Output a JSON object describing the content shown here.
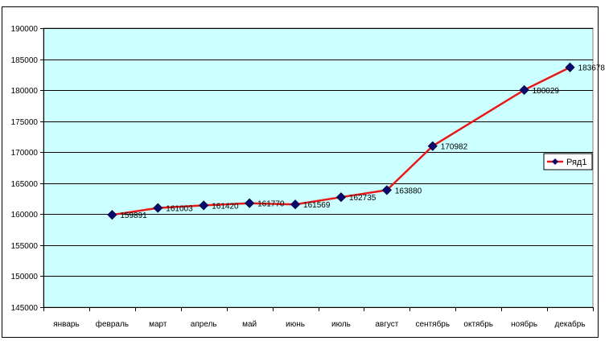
{
  "chart_data": {
    "type": "line",
    "categories": [
      "январь",
      "февраль",
      "март",
      "апрель",
      "май",
      "июнь",
      "июль",
      "август",
      "сентябрь",
      "октябрь",
      "ноябрь",
      "декабрь"
    ],
    "series": [
      {
        "name": "Ряд1",
        "values": [
          null,
          159891,
          161003,
          161420,
          161770,
          161569,
          162735,
          163880,
          170982,
          null,
          180029,
          183678
        ],
        "labels": [
          "",
          "159891",
          "161003",
          "161420",
          "161770",
          "161569",
          "162735",
          "163880",
          "170982",
          "",
          "180029",
          "183678"
        ],
        "color": "#e81818",
        "marker_color": "#0a0a6e"
      }
    ],
    "ylim": [
      145000,
      190000
    ],
    "ytick_step": 5000,
    "yticks": [
      "145000",
      "150000",
      "155000",
      "160000",
      "165000",
      "170000",
      "175000",
      "180000",
      "185000",
      "190000"
    ],
    "grid": true,
    "legend_position": "right",
    "plot_background": "#ccffff"
  }
}
